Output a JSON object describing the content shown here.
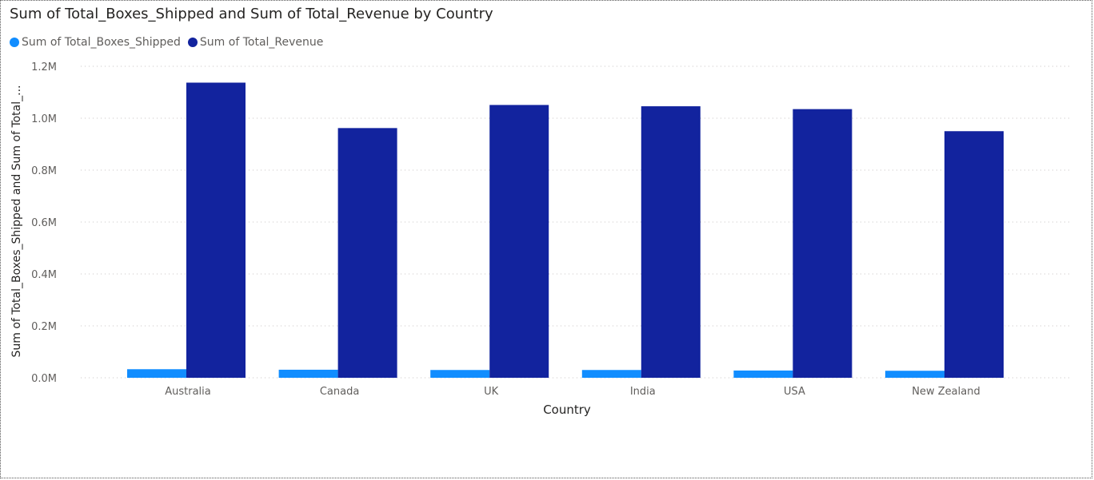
{
  "chart_data": {
    "type": "bar",
    "title": "Sum of Total_Boxes_Shipped and Sum of Total_Revenue by Country",
    "xlabel": "Country",
    "ylabel": "Sum of Total_Boxes_Shipped and Sum of Total_...",
    "categories": [
      "Australia",
      "Canada",
      "UK",
      "India",
      "USA",
      "New Zealand"
    ],
    "series": [
      {
        "name": "Sum of Total_Boxes_Shipped",
        "color": "#118DFF",
        "values": [
          33000,
          31000,
          30000,
          30000,
          28000,
          27000
        ]
      },
      {
        "name": "Sum of Total_Revenue",
        "color": "#12239E",
        "values": [
          1137000,
          962000,
          1051000,
          1046000,
          1035000,
          950000
        ]
      }
    ],
    "ylim": [
      0,
      1200000
    ],
    "yticks": [
      0,
      200000,
      400000,
      600000,
      800000,
      1000000,
      1200000
    ],
    "ytick_labels": [
      "0.0M",
      "0.2M",
      "0.4M",
      "0.6M",
      "0.8M",
      "1.0M",
      "1.2M"
    ],
    "grid": true,
    "legend_position": "top-left"
  }
}
